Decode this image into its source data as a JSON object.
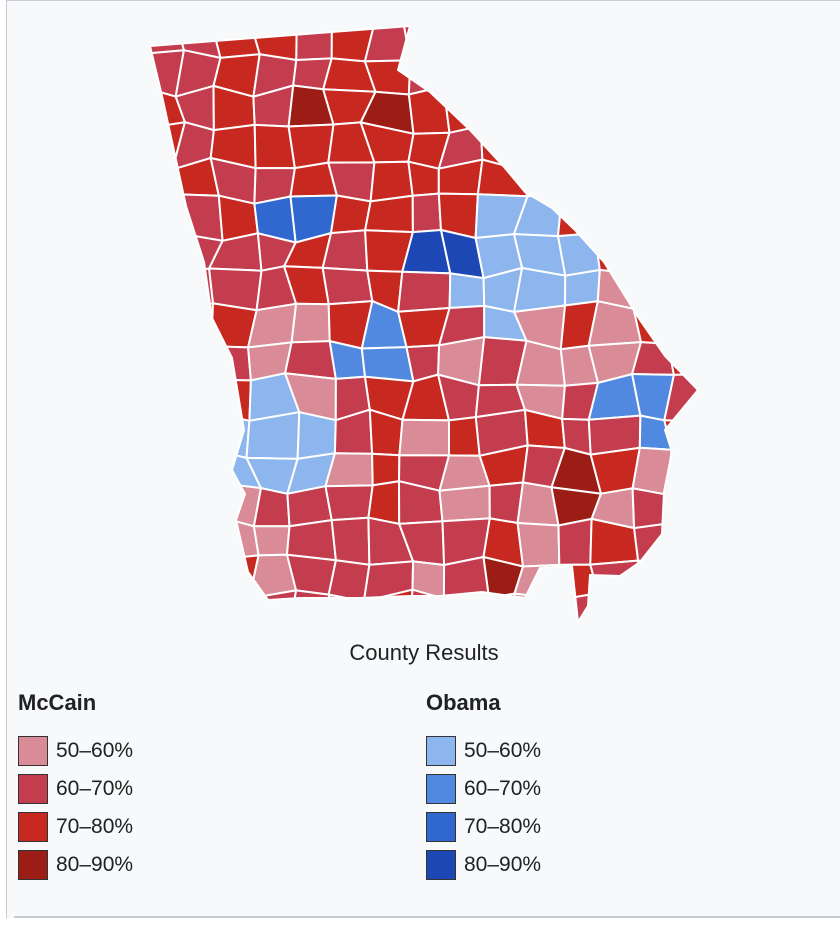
{
  "map": {
    "caption": "County Results",
    "colors": {
      "mccain": [
        "#d98c97",
        "#c43d4e",
        "#c7281f",
        "#9b1d16"
      ],
      "obama": [
        "#8db6ef",
        "#5189e0",
        "#3068d0",
        "#1c47b5"
      ]
    }
  },
  "legend": {
    "mccain": {
      "title": "McCain",
      "items": [
        {
          "label": "50–60%",
          "color": "#d98c97"
        },
        {
          "label": "60–70%",
          "color": "#c43d4e"
        },
        {
          "label": "70–80%",
          "color": "#c7281f"
        },
        {
          "label": "80–90%",
          "color": "#9b1d16"
        }
      ]
    },
    "obama": {
      "title": "Obama",
      "items": [
        {
          "label": "50–60%",
          "color": "#8db6ef"
        },
        {
          "label": "60–70%",
          "color": "#5189e0"
        },
        {
          "label": "70–80%",
          "color": "#3068d0"
        },
        {
          "label": "80–90%",
          "color": "#1c47b5"
        }
      ]
    }
  }
}
